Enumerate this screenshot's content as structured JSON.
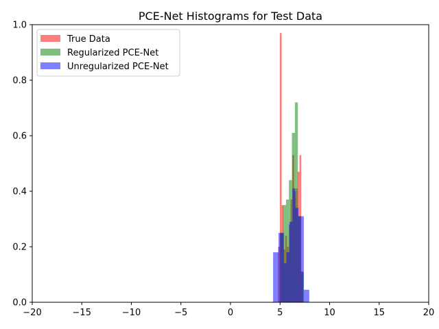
{
  "chart_data": {
    "type": "bar",
    "title": "PCE-Net Histograms for Test Data",
    "xlabel": "",
    "ylabel": "",
    "xlim": [
      -20,
      20
    ],
    "ylim": [
      0,
      1.0
    ],
    "xticks": [
      -20,
      -15,
      -10,
      -5,
      0,
      5,
      10,
      15,
      20
    ],
    "xtick_labels": [
      "−20",
      "−15",
      "−10",
      "−5",
      "0",
      "5",
      "10",
      "15",
      "20"
    ],
    "yticks": [
      0.0,
      0.2,
      0.4,
      0.6,
      0.8,
      1.0
    ],
    "ytick_labels": [
      "0.0",
      "0.2",
      "0.4",
      "0.6",
      "0.8",
      "1.0"
    ],
    "grid": false,
    "legend_position": "top-left",
    "series": [
      {
        "name": "True Data",
        "color": "#ff0000",
        "alpha": 0.5,
        "bins": [
          {
            "x0": 4.8,
            "x1": 4.98,
            "h": 0.2
          },
          {
            "x0": 4.98,
            "x1": 5.16,
            "h": 0.97
          },
          {
            "x0": 5.16,
            "x1": 5.34,
            "h": 0.35
          },
          {
            "x0": 5.34,
            "x1": 5.52,
            "h": 0.19
          },
          {
            "x0": 5.52,
            "x1": 5.7,
            "h": 0.24
          },
          {
            "x0": 5.7,
            "x1": 5.88,
            "h": 0.2
          },
          {
            "x0": 5.88,
            "x1": 6.06,
            "h": 0.28
          },
          {
            "x0": 6.06,
            "x1": 6.24,
            "h": 0.37
          },
          {
            "x0": 6.24,
            "x1": 6.42,
            "h": 0.53
          },
          {
            "x0": 6.42,
            "x1": 6.6,
            "h": 0.4
          },
          {
            "x0": 6.6,
            "x1": 6.78,
            "h": 0.41
          },
          {
            "x0": 6.78,
            "x1": 6.96,
            "h": 0.47
          },
          {
            "x0": 6.96,
            "x1": 7.14,
            "h": 0.53
          },
          {
            "x0": 7.14,
            "x1": 7.32,
            "h": 0.11
          }
        ]
      },
      {
        "name": "Regularized PCE-Net",
        "color": "#008000",
        "alpha": 0.5,
        "bins": [
          {
            "x0": 5.0,
            "x1": 5.3,
            "h": 0.25
          },
          {
            "x0": 5.3,
            "x1": 5.6,
            "h": 0.35
          },
          {
            "x0": 5.6,
            "x1": 5.9,
            "h": 0.37
          },
          {
            "x0": 5.9,
            "x1": 6.2,
            "h": 0.44
          },
          {
            "x0": 6.2,
            "x1": 6.5,
            "h": 0.61
          },
          {
            "x0": 6.5,
            "x1": 6.8,
            "h": 0.72
          },
          {
            "x0": 6.8,
            "x1": 7.1,
            "h": 0.31
          },
          {
            "x0": 7.1,
            "x1": 7.4,
            "h": 0.11
          }
        ]
      },
      {
        "name": "Unregularized PCE-Net",
        "color": "#0000ff",
        "alpha": 0.5,
        "bins": [
          {
            "x0": 4.3,
            "x1": 4.85,
            "h": 0.18
          },
          {
            "x0": 4.85,
            "x1": 5.4,
            "h": 0.25
          },
          {
            "x0": 5.4,
            "x1": 5.65,
            "h": 0.14
          },
          {
            "x0": 5.65,
            "x1": 5.95,
            "h": 0.18
          },
          {
            "x0": 5.95,
            "x1": 6.25,
            "h": 0.29
          },
          {
            "x0": 6.25,
            "x1": 6.55,
            "h": 0.41
          },
          {
            "x0": 6.55,
            "x1": 6.85,
            "h": 0.34
          },
          {
            "x0": 6.85,
            "x1": 7.4,
            "h": 0.31
          },
          {
            "x0": 7.4,
            "x1": 7.95,
            "h": 0.045
          }
        ]
      }
    ]
  }
}
